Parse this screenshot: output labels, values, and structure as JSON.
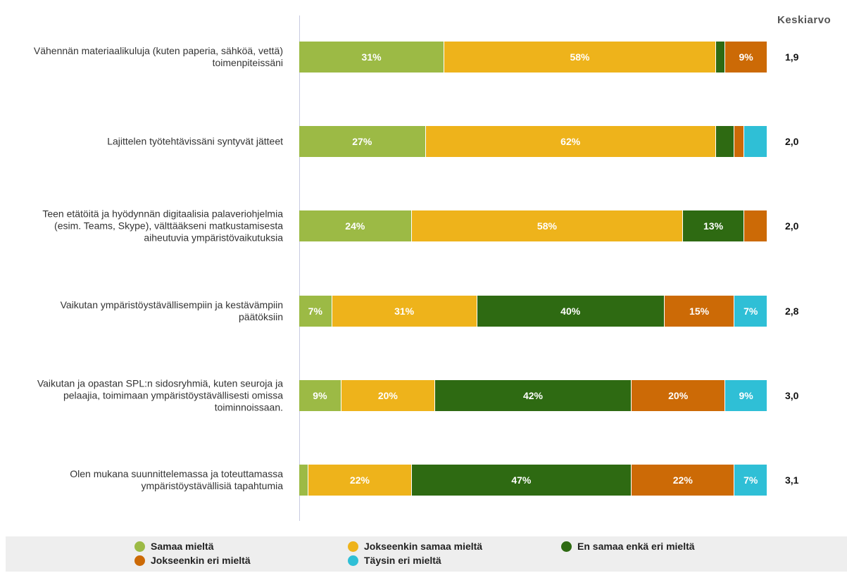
{
  "chart_data": {
    "type": "stacked-bar-horizontal",
    "categories": [
      "Vähennän materiaalikuluja (kuten paperia, sähköä, vettä) toimenpiteissäni",
      "Lajittelen työtehtävissäni syntyvät jätteet",
      "Teen etätöitä ja hyödynnän digitaalisia palaveriohjelmia (esim. Teams, Skype), välttääkseni matkustamisesta aiheutuvia ympäristövaikutuksia",
      "Vaikutan ympäristöystävällisempiin ja kestävämpiin päätöksiin",
      "Vaikutan ja opastan SPL:n sidosryhmiä, kuten seuroja ja pelaajia, toimimaan ympäristöystävällisesti omissa toiminnoissaan.",
      "Olen mukana suunnittelemassa ja toteuttamassa ympäristöystävällisiä tapahtumia"
    ],
    "xlim": [
      0,
      100
    ],
    "series": [
      {
        "name": "Samaa mieltä",
        "color": "#9cba45",
        "values": [
          31,
          27,
          24,
          7,
          9,
          2
        ],
        "value_labels": [
          "31%",
          "27%",
          "24%",
          "7%",
          "9%",
          null
        ]
      },
      {
        "name": "Jokseenkin samaa mieltä",
        "color": "#eeb31b",
        "values": [
          58,
          62,
          58,
          31,
          20,
          22
        ],
        "value_labels": [
          "58%",
          "62%",
          "58%",
          "31%",
          "20%",
          "22%"
        ]
      },
      {
        "name": "En samaa enkä eri mieltä",
        "color": "#2e6a12",
        "values": [
          2,
          4,
          13,
          40,
          42,
          47
        ],
        "value_labels": [
          null,
          null,
          "13%",
          "40%",
          "42%",
          "47%"
        ]
      },
      {
        "name": "Jokseenkin eri mieltä",
        "color": "#cc6a06",
        "values": [
          9,
          2,
          5,
          15,
          20,
          22
        ],
        "value_labels": [
          "9%",
          null,
          null,
          "15%",
          "20%",
          "22%"
        ]
      },
      {
        "name": "Täysin eri mieltä",
        "color": "#2fbfd6",
        "values": [
          0,
          5,
          0,
          7,
          9,
          7
        ],
        "value_labels": [
          null,
          null,
          null,
          "7%",
          "9%",
          "7%"
        ]
      }
    ],
    "averages": {
      "title": "Keskiarvo",
      "values": [
        1.9,
        2.0,
        2.0,
        2.8,
        3.0,
        3.1
      ],
      "value_labels": [
        "1,9",
        "2,0",
        "2,0",
        "2,8",
        "3,0",
        "3,1"
      ]
    }
  }
}
